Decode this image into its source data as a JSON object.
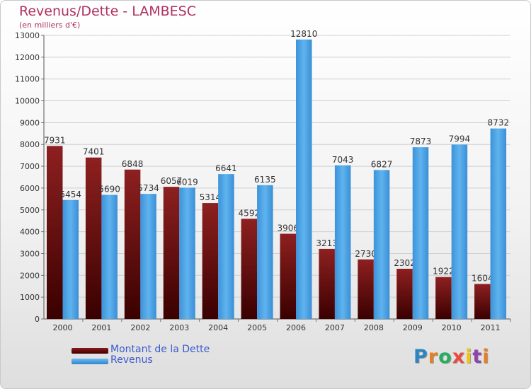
{
  "header": {
    "title": "Revenus/Dette - LAMBESC",
    "subtitle": "(en milliers d'€)"
  },
  "legend": {
    "items": [
      {
        "label": "Montant de la Dette",
        "color": "#6b0a0a"
      },
      {
        "label": "Revenus",
        "color": "#4aa3e6"
      }
    ]
  },
  "logo": {
    "text": "Proxiti",
    "letter_colors": [
      "#2e86c1",
      "#e67e22",
      "#27ae60",
      "#e74c3c",
      "#f1c40f",
      "#8e44ad",
      "#e67e22"
    ]
  },
  "chart_data": {
    "type": "bar",
    "title": "Revenus/Dette - LAMBESC",
    "subtitle": "(en milliers d'€)",
    "categories": [
      "2000",
      "2001",
      "2002",
      "2003",
      "2004",
      "2005",
      "2006",
      "2007",
      "2008",
      "2009",
      "2010",
      "2011"
    ],
    "series": [
      {
        "name": "Montant de la Dette",
        "color": "#6b0a0a",
        "values": [
          7931,
          7401,
          6848,
          6057,
          5314,
          4592,
          3906,
          3213,
          2730,
          2302,
          1922,
          1604
        ]
      },
      {
        "name": "Revenus",
        "color": "#4aa3e6",
        "values": [
          5454,
          5690,
          5734,
          6019,
          6641,
          6135,
          12810,
          7043,
          6827,
          7873,
          7994,
          8732
        ]
      }
    ],
    "ylim": [
      0,
      13000
    ],
    "yticks": [
      0,
      1000,
      2000,
      3000,
      4000,
      5000,
      6000,
      7000,
      8000,
      9000,
      10000,
      11000,
      12000,
      13000
    ],
    "grid": true,
    "legend_position": "bottom-left"
  }
}
